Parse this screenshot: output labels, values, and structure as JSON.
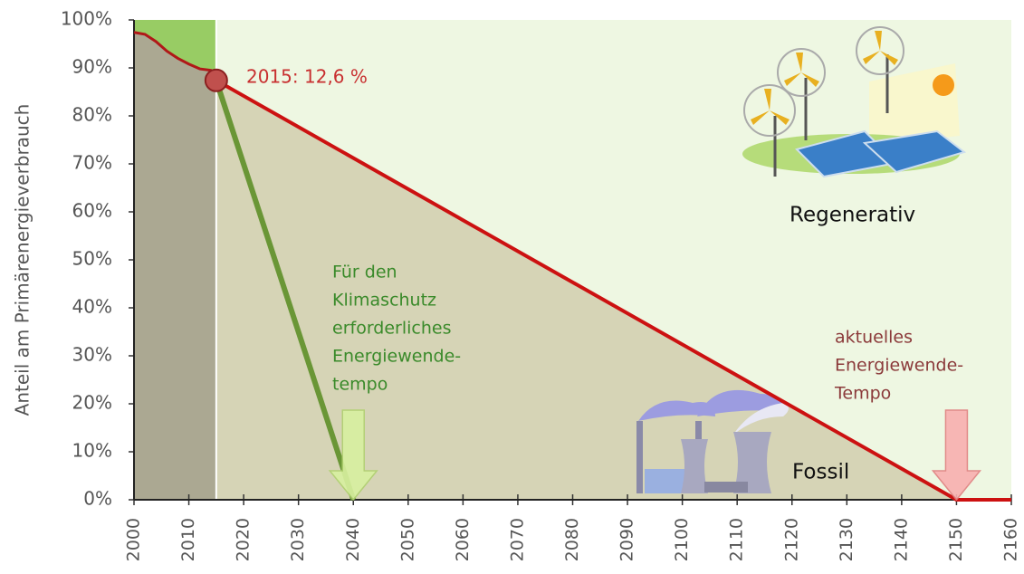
{
  "chart_data": {
    "type": "line",
    "ylabel": "Anteil am Primärenergieverbrauch",
    "xlim": [
      2000,
      2160
    ],
    "xticks": [
      2000,
      2010,
      2020,
      2030,
      2040,
      2050,
      2060,
      2070,
      2080,
      2090,
      2100,
      2110,
      2120,
      2130,
      2140,
      2150,
      2160
    ],
    "ylim": [
      0,
      100
    ],
    "yticks": [
      {
        "value": 0,
        "label": "0%"
      },
      {
        "value": 10,
        "label": "10%"
      },
      {
        "value": 20,
        "label": "20%"
      },
      {
        "value": 30,
        "label": "30%"
      },
      {
        "value": 40,
        "label": "40%"
      },
      {
        "value": 50,
        "label": "50%"
      },
      {
        "value": 60,
        "label": "60%"
      },
      {
        "value": 70,
        "label": "70%"
      },
      {
        "value": 80,
        "label": "80%"
      },
      {
        "value": 90,
        "label": "90%"
      },
      {
        "value": 100,
        "label": "100%"
      }
    ],
    "series": [
      {
        "color": "#b01818",
        "x": [
          2000,
          2002,
          2004,
          2006,
          2008,
          2010,
          2012,
          2014,
          2015
        ],
        "values": [
          97.4,
          97,
          95.5,
          93.5,
          92,
          90.8,
          89.8,
          89.5,
          87.4
        ]
      },
      {
        "color": "#cc1111",
        "x": [
          2015,
          2150,
          2160
        ],
        "values": [
          87.4,
          0,
          0
        ]
      },
      {
        "color": "#6a9636",
        "x": [
          2015,
          2040
        ],
        "values": [
          87.4,
          0
        ]
      }
    ],
    "point_label": "2015: 12,6 %",
    "region_labels": [
      "Regenerativ",
      "Fossil"
    ],
    "green_note": [
      "Für den",
      "Klimaschutz",
      "erforderliches",
      "Energiewende-",
      "tempo"
    ],
    "red_note": [
      "aktuelles",
      "Energiewende-",
      "Tempo"
    ]
  }
}
